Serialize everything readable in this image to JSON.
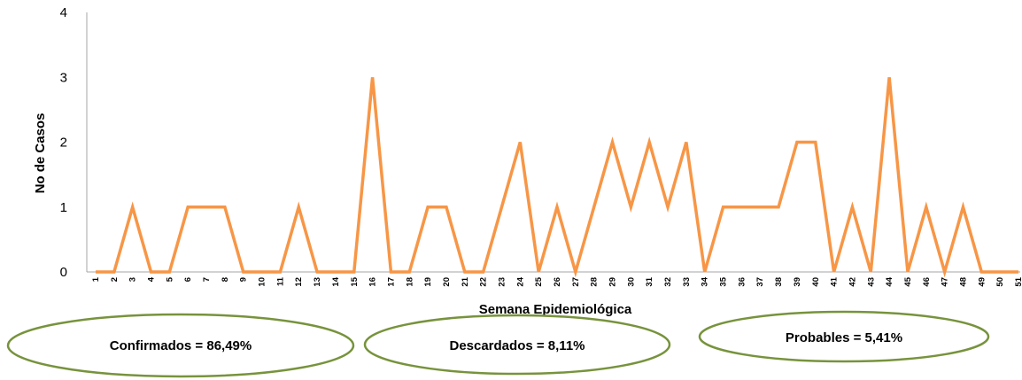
{
  "chart_data": {
    "type": "line",
    "title": "",
    "xlabel": "Semana Epidemiológica",
    "ylabel": "No de Casos",
    "ylim": [
      0,
      4
    ],
    "yticks": [
      "0",
      "1",
      "2",
      "3",
      "4"
    ],
    "x": [
      "1",
      "2",
      "3",
      "4",
      "5",
      "6",
      "7",
      "8",
      "9",
      "10",
      "11",
      "12",
      "13",
      "14",
      "15",
      "16",
      "17",
      "18",
      "19",
      "20",
      "21",
      "22",
      "23",
      "24",
      "25",
      "26",
      "27",
      "28",
      "29",
      "30",
      "31",
      "32",
      "33",
      "34",
      "35",
      "36",
      "37",
      "38",
      "39",
      "40",
      "41",
      "42",
      "43",
      "44",
      "45",
      "46",
      "47",
      "48",
      "49",
      "50",
      "51"
    ],
    "series": [
      {
        "values": [
          0,
          0,
          1,
          0,
          0,
          1,
          1,
          1,
          0,
          0,
          0,
          1,
          0,
          0,
          0,
          3,
          0,
          0,
          1,
          1,
          0,
          0,
          1,
          2,
          0,
          1,
          0,
          1,
          2,
          1,
          2,
          1,
          2,
          0,
          1,
          1,
          1,
          1,
          2,
          2,
          0,
          1,
          0,
          3,
          0,
          1,
          0,
          1,
          0,
          0,
          0
        ],
        "color": "#F79646"
      }
    ],
    "grid": false,
    "legend": "none"
  },
  "annotations": [
    {
      "text": "Confirmados = 86,49%"
    },
    {
      "text": "Descardados = 8,11%"
    },
    {
      "text": "Probables = 5,41%"
    }
  ],
  "colors": {
    "line": "#F79646",
    "ellipse_stroke": "#77933C",
    "axis": "#A6A6A6"
  }
}
